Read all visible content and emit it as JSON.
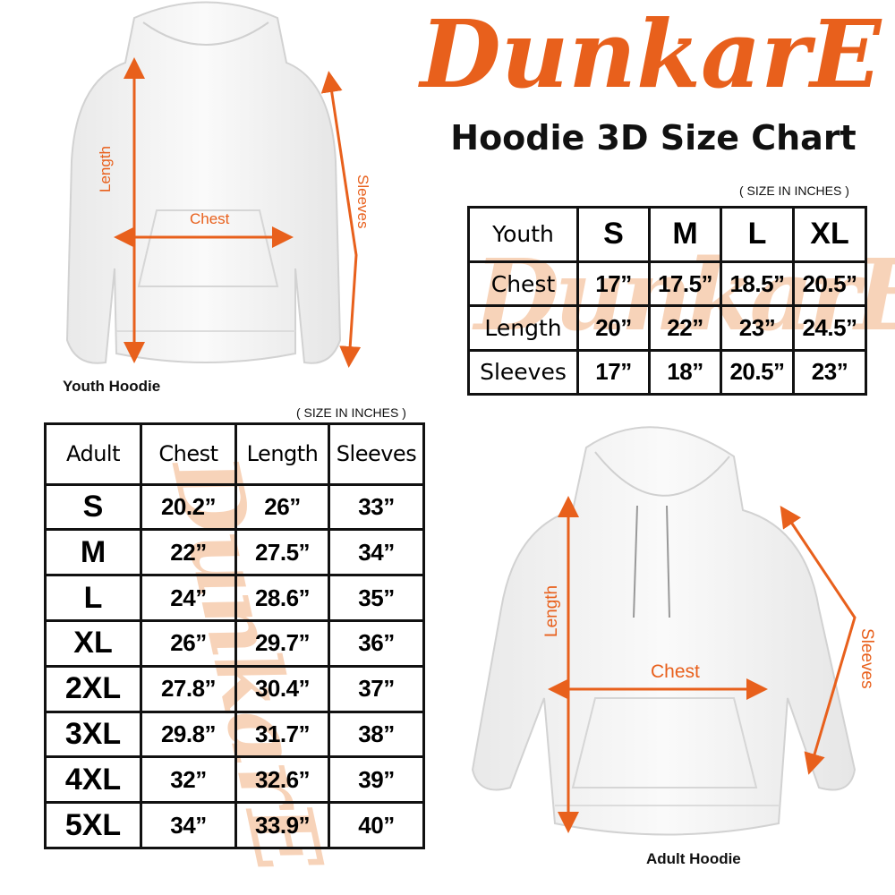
{
  "brand": {
    "logo_text": "DunkarE",
    "color": "#e8601c"
  },
  "title": "Hoodie 3D Size Chart",
  "youth": {
    "unit_note": "( SIZE IN INCHES )",
    "caption": "Youth Hoodie",
    "labels": {
      "length": "Length",
      "chest": "Chest",
      "sleeves": "Sleeves"
    },
    "table": {
      "corner": "Youth",
      "sizes": [
        "S",
        "M",
        "L",
        "XL"
      ],
      "rows": [
        {
          "label": "Chest",
          "values": [
            "17”",
            "17.5”",
            "18.5”",
            "20.5”"
          ]
        },
        {
          "label": "Length",
          "values": [
            "20”",
            "22”",
            "23”",
            "24.5”"
          ]
        },
        {
          "label": "Sleeves",
          "values": [
            "17”",
            "18”",
            "20.5”",
            "23”"
          ]
        }
      ]
    }
  },
  "adult": {
    "unit_note": "( SIZE IN INCHES )",
    "caption": "Adult Hoodie",
    "labels": {
      "length": "Length",
      "chest": "Chest",
      "sleeves": "Sleeves"
    },
    "table": {
      "headers": [
        "Adult",
        "Chest",
        "Length",
        "Sleeves"
      ],
      "rows": [
        {
          "size": "S",
          "values": [
            "20.2”",
            "26”",
            "33”"
          ]
        },
        {
          "size": "M",
          "values": [
            "22”",
            "27.5”",
            "34”"
          ]
        },
        {
          "size": "L",
          "values": [
            "24”",
            "28.6”",
            "35”"
          ]
        },
        {
          "size": "XL",
          "values": [
            "26”",
            "29.7”",
            "36”"
          ]
        },
        {
          "size": "2XL",
          "values": [
            "27.8”",
            "30.4”",
            "37”"
          ]
        },
        {
          "size": "3XL",
          "values": [
            "29.8”",
            "31.7”",
            "38”"
          ]
        },
        {
          "size": "4XL",
          "values": [
            "32”",
            "32.6”",
            "39”"
          ]
        },
        {
          "size": "5XL",
          "values": [
            "34”",
            "33.9”",
            "40”"
          ]
        }
      ]
    }
  }
}
